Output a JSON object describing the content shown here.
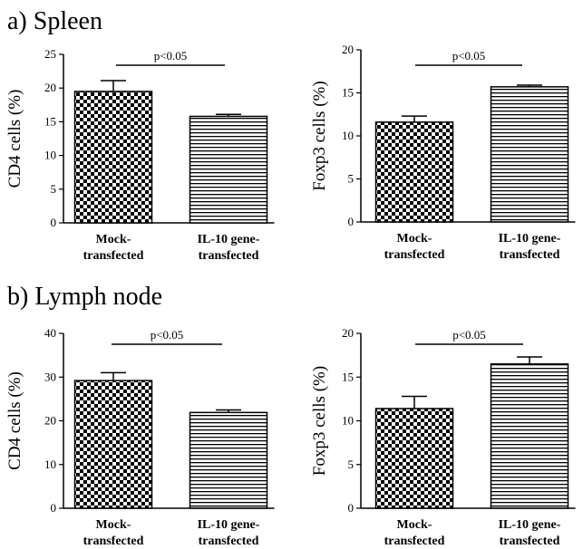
{
  "sections": [
    {
      "label": "a) Spleen"
    },
    {
      "label": "b) Lymph node"
    }
  ],
  "chart_data": [
    {
      "type": "bar",
      "panel": "spleen-cd4",
      "categories": [
        "Mock-\ntransfected",
        "IL-10 gene-\ntransfected"
      ],
      "values": [
        19.5,
        15.8
      ],
      "errors": [
        1.6,
        0.3
      ],
      "ylabel": "CD4 cells (%)",
      "xlabel": "",
      "ylim": [
        0,
        25
      ],
      "yticks": [
        0,
        5,
        10,
        15,
        20,
        25
      ],
      "annotation": "p<0.05",
      "patterns": [
        "checker",
        "hlines"
      ]
    },
    {
      "type": "bar",
      "panel": "spleen-foxp3",
      "categories": [
        "Mock-\ntransfected",
        "IL-10 gene-\ntransfected"
      ],
      "values": [
        11.6,
        15.7
      ],
      "errors": [
        0.7,
        0.2
      ],
      "ylabel": "Foxp3 cells (%)",
      "xlabel": "",
      "ylim": [
        0,
        20
      ],
      "yticks": [
        0,
        5,
        10,
        15,
        20
      ],
      "annotation": "p<0.05",
      "patterns": [
        "checker",
        "hlines"
      ]
    },
    {
      "type": "bar",
      "panel": "lymph-cd4",
      "categories": [
        "Mock-\ntransfected",
        "IL-10 gene-\ntransfected"
      ],
      "values": [
        29.2,
        21.9
      ],
      "errors": [
        1.8,
        0.6
      ],
      "ylabel": "CD4 cells (%)",
      "xlabel": "",
      "ylim": [
        0,
        40
      ],
      "yticks": [
        0,
        10,
        20,
        30,
        40
      ],
      "annotation": "p<0.05",
      "patterns": [
        "checker",
        "hlines"
      ]
    },
    {
      "type": "bar",
      "panel": "lymph-foxp3",
      "categories": [
        "Mock-\ntransfected",
        "IL-10 gene-\ntransfected"
      ],
      "values": [
        11.4,
        16.5
      ],
      "errors": [
        1.4,
        0.8
      ],
      "ylabel": "Foxp3 cells (%)",
      "xlabel": "",
      "ylim": [
        0,
        20
      ],
      "yticks": [
        0,
        5,
        10,
        15,
        20
      ],
      "annotation": "p<0.05",
      "patterns": [
        "checker",
        "hlines"
      ]
    }
  ]
}
